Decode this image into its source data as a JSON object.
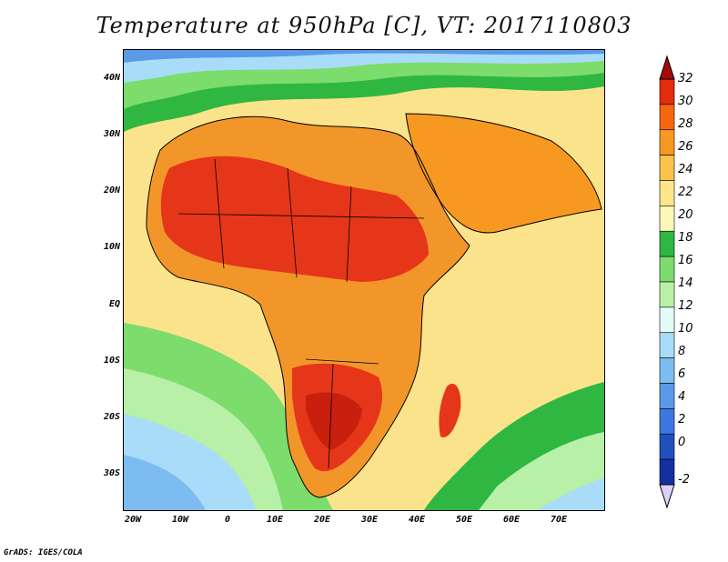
{
  "title": "Temperature at 950hPa [C], VT: 2017110803",
  "credit": "GrADS: IGES/COLA",
  "lat_labels": [
    "40N",
    "30N",
    "20N",
    "10N",
    "EQ",
    "10S",
    "20S",
    "30S"
  ],
  "lon_labels": [
    "20W",
    "10W",
    "0",
    "10E",
    "20E",
    "30E",
    "40E",
    "50E",
    "60E",
    "70E"
  ],
  "colorbar": {
    "labels": [
      "32",
      "30",
      "28",
      "26",
      "24",
      "22",
      "20",
      "18",
      "16",
      "14",
      "12",
      "10",
      "8",
      "6",
      "4",
      "2",
      "0",
      "-2"
    ],
    "colors": [
      "#a50a0a",
      "#e22c0b",
      "#f7650f",
      "#f79820",
      "#fbc24c",
      "#fde68a",
      "#fdf7b8",
      "#2fb742",
      "#7cdc6c",
      "#b8f0a8",
      "#e3fbf6",
      "#a8dcf8",
      "#7cbcf0",
      "#5a9ae8",
      "#3c78e0",
      "#2050c0",
      "#1430a0",
      "#101a7a"
    ]
  },
  "map": {
    "ocean_color": "#fbe38c",
    "land_color": "#f3962a",
    "hot_color": "#e5361a"
  }
}
